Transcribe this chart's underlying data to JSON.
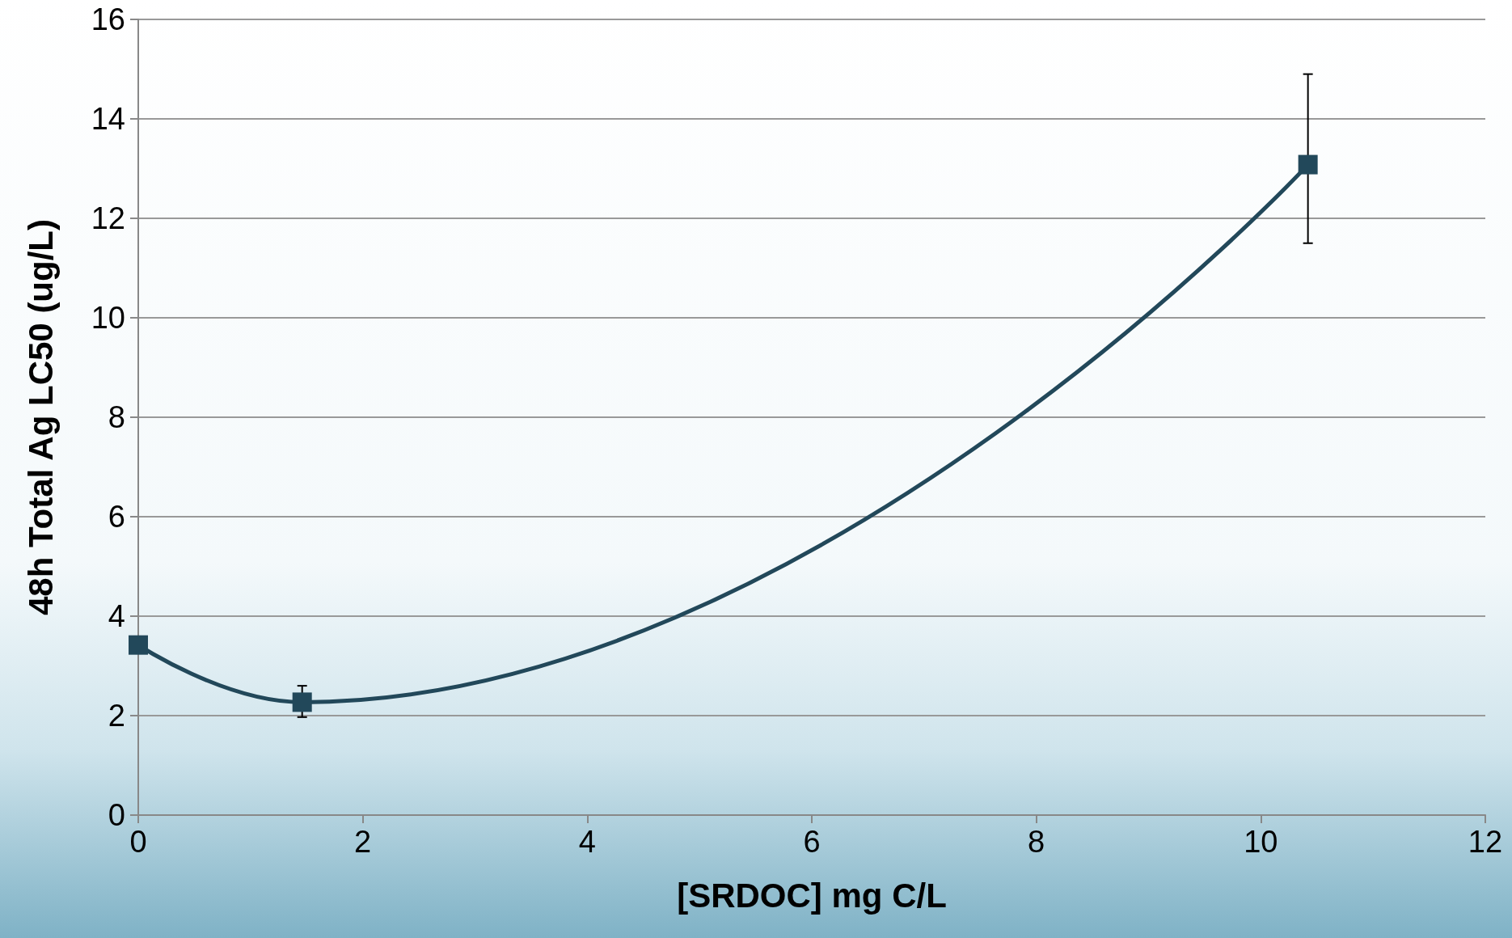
{
  "chart_data": {
    "type": "line",
    "xlabel": "[SRDOC] mg C/L",
    "ylabel": "48h Total Ag LC50 (ug/L)",
    "x": [
      0,
      1.46,
      10.42
    ],
    "series": [
      {
        "color": "#22485a",
        "values": [
          3.42,
          2.27,
          13.08
        ],
        "errors": [
          null,
          [
            1.97,
            2.6
          ],
          [
            11.5,
            14.9
          ]
        ]
      }
    ],
    "xlim": [
      0,
      12
    ],
    "xticks": [
      0,
      2,
      4,
      6,
      8,
      10,
      12
    ],
    "ylim": [
      0,
      16
    ],
    "yticks": [
      0,
      2,
      4,
      6,
      8,
      10,
      12,
      14,
      16
    ],
    "grid": "y",
    "marker": "square",
    "line_style": "solid"
  }
}
